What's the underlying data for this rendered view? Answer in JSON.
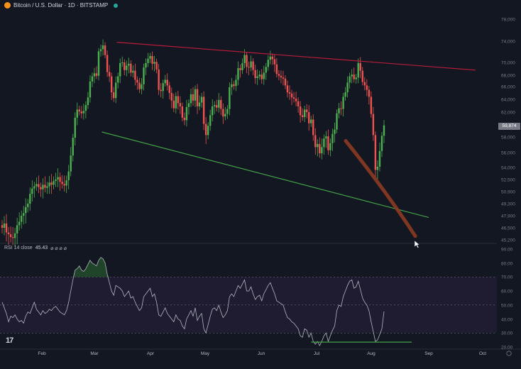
{
  "header": {
    "symbol": "Bitcoin / U.S. Dollar · 1D · BITSTAMP"
  },
  "rsi_header": {
    "label": "RSI 14 close",
    "value": "45.43",
    "extras": "⌀ ⌀ ⌀ ⌀"
  },
  "price_tag": "59,874",
  "logo": "17",
  "colors": {
    "background": "#131722",
    "up": "#26a69a",
    "up_bright": "#4caf50",
    "down": "#ef5350",
    "resistance": "#b71c3a",
    "support": "#43a047",
    "projection": "#8d3a20",
    "rsi_line": "#b2b5be",
    "rsi_band": "#2a2140"
  },
  "chart_data": [
    {
      "type": "candlestick",
      "y_tick_labels": [
        "78,000",
        "74,000",
        "70,000",
        "68,000",
        "66,000",
        "64,000",
        "62,000",
        "58,000",
        "56,000",
        "54,000",
        "52,500",
        "50,900",
        "49,300",
        "47,900",
        "46,500",
        "45,200"
      ],
      "x_tick_labels": [
        "Feb",
        "Mar",
        "Apr",
        "May",
        "Jun",
        "Jul",
        "Aug",
        "Sep",
        "Oct"
      ],
      "ylim": [
        45200,
        78000
      ],
      "last_price": 59874,
      "trendlines": [
        {
          "role": "resistance",
          "from": [
            "Mar 13",
            73800
          ],
          "to": [
            "Sep 27",
            68800
          ]
        },
        {
          "role": "support",
          "from": [
            "Mar 5",
            58800
          ],
          "to": [
            "Aug 31",
            47700
          ]
        },
        {
          "role": "projection",
          "from": [
            "Jul 17",
            57500
          ],
          "to": [
            "Aug 24",
            45600
          ]
        }
      ],
      "closes": [
        46500,
        47000,
        46000,
        45800,
        45500,
        45400,
        45900,
        46800,
        47200,
        47900,
        48200,
        48900,
        49300,
        50600,
        51300,
        51600,
        51900,
        51500,
        51200,
        51800,
        51400,
        51600,
        52100,
        51800,
        52300,
        52500,
        52800,
        52200,
        51900,
        51700,
        52400,
        53500,
        55600,
        57900,
        61100,
        62400,
        62100,
        61800,
        62200,
        63100,
        64300,
        66900,
        67800,
        68300,
        67900,
        72100,
        72500,
        73200,
        71400,
        68500,
        67800,
        65100,
        64200,
        66700,
        67800,
        69900,
        70000,
        68800,
        69500,
        69800,
        68400,
        68700,
        67200,
        66700,
        65600,
        66400,
        69200,
        69900,
        70700,
        71200,
        69800,
        70100,
        68900,
        65500,
        65300,
        66600,
        67200,
        66200,
        65000,
        63800,
        62600,
        64500,
        63400,
        62900,
        61100,
        60700,
        62800,
        63400,
        64800,
        63800,
        65600,
        62900,
        63500,
        64400,
        60100,
        58300,
        59800,
        61500,
        62900,
        63100,
        62700,
        63900,
        62500,
        61300,
        61700,
        62500,
        65900,
        66400,
        66100,
        67200,
        69100,
        68800,
        69900,
        71400,
        69300,
        69200,
        70200,
        68800,
        67500,
        67800,
        68100,
        67300,
        68400,
        69300,
        70500,
        71100,
        70600,
        69700,
        68200,
        67900,
        67600,
        67400,
        66200,
        65100,
        64900,
        64300,
        64100,
        63700,
        62900,
        61500,
        61200,
        62400,
        62000,
        60200,
        60800,
        58300,
        56700,
        57100,
        55900,
        56700,
        57800,
        58100,
        56300,
        57200,
        58500,
        59200,
        61800,
        62600,
        62500,
        64400,
        65100,
        66700,
        67800,
        68100,
        67300,
        67600,
        69900,
        68700,
        66800,
        66200,
        65500,
        64400,
        61700,
        58300,
        53700,
        54100,
        56200,
        58200,
        59874
      ],
      "series_partial_note": "",
      "xlabel": "",
      "ylabel": ""
    },
    {
      "type": "line",
      "title": "RSI 14 close",
      "y_tick_labels": [
        "90.00",
        "80.00",
        "70.00",
        "60.00",
        "50.00",
        "40.00",
        "30.00",
        "20.00"
      ],
      "ylim": [
        20,
        90
      ],
      "band": [
        30,
        70
      ],
      "values": [
        52,
        48,
        44,
        38,
        42,
        41,
        43,
        40,
        38,
        39,
        37,
        42,
        45,
        44,
        48,
        52,
        47,
        45,
        43,
        46,
        44,
        45,
        47,
        46,
        48,
        49,
        47,
        45,
        44,
        43,
        46,
        52,
        60,
        68,
        75,
        76,
        78,
        75,
        74,
        76,
        79,
        82,
        80,
        79,
        78,
        82,
        84,
        83,
        80,
        72,
        66,
        60,
        57,
        64,
        63,
        62,
        60,
        56,
        58,
        60,
        55,
        56,
        52,
        49,
        46,
        48,
        56,
        58,
        60,
        62,
        56,
        58,
        52,
        43,
        42,
        45,
        48,
        44,
        42,
        40,
        38,
        43,
        40,
        39,
        35,
        33,
        40,
        43,
        46,
        42,
        48,
        39,
        42,
        44,
        33,
        30,
        36,
        42,
        47,
        48,
        46,
        50,
        45,
        41,
        43,
        46,
        56,
        58,
        56,
        60,
        64,
        62,
        65,
        68,
        60,
        60,
        63,
        58,
        54,
        56,
        57,
        53,
        58,
        61,
        64,
        66,
        62,
        58,
        53,
        52,
        51,
        50,
        45,
        41,
        40,
        38,
        37,
        35,
        33,
        28,
        27,
        33,
        32,
        27,
        30,
        24,
        22,
        24,
        21,
        24,
        28,
        30,
        24,
        28,
        32,
        35,
        46,
        50,
        49,
        56,
        60,
        64,
        67,
        68,
        62,
        63,
        67,
        61,
        55,
        52,
        50,
        46,
        38,
        31,
        24,
        25,
        29,
        33,
        45.43
      ],
      "divergence_line": {
        "from": [
          40,
          "Jul 5"
        ],
        "to": [
          "Aug 31",
          22
        ]
      }
    }
  ]
}
